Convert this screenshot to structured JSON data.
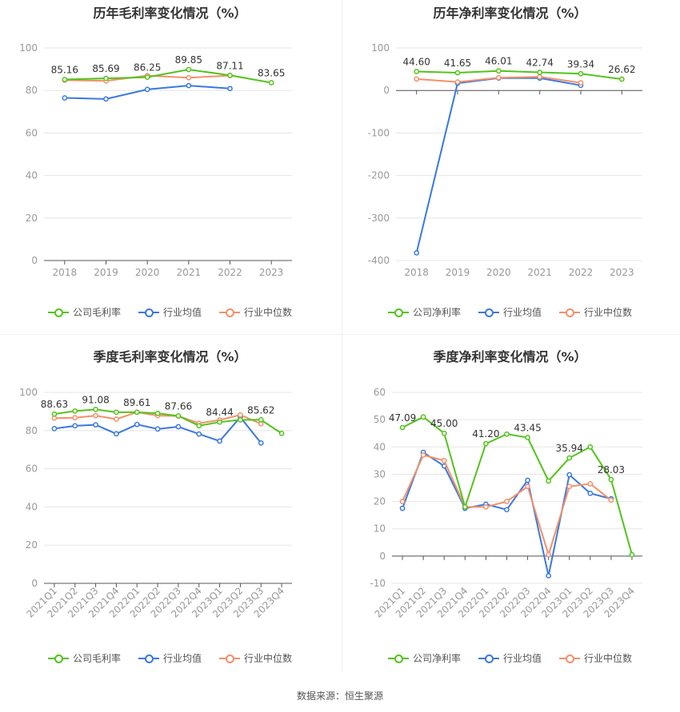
{
  "colors": {
    "company": "#52c41a",
    "avg": "#3a78e0",
    "median": "#f4906a",
    "grid": "#e6e6e6",
    "axis": "#555555",
    "tick": "#999999"
  },
  "legend": {
    "gross": "公司毛利率",
    "net": "公司净利率",
    "avg": "行业均值",
    "median": "行业中位数"
  },
  "source": "数据来源：恒生聚源",
  "chart_data": [
    {
      "title": "历年毛利率变化情况（%）",
      "type": "line",
      "x": [
        "2018",
        "2019",
        "2020",
        "2021",
        "2022",
        "2023"
      ],
      "ylim": [
        0,
        100
      ],
      "yticks": [
        0,
        20,
        40,
        60,
        80,
        100
      ],
      "series": [
        {
          "name": "公司毛利率",
          "values": [
            85.16,
            85.69,
            86.25,
            89.85,
            87.11,
            83.65
          ]
        },
        {
          "name": "行业均值",
          "values": [
            76.5,
            76.0,
            80.5,
            82.3,
            80.9,
            null
          ]
        },
        {
          "name": "行业中位数",
          "values": [
            84.8,
            84.5,
            87.0,
            86.0,
            87.0,
            null
          ]
        }
      ],
      "labels": [
        "85.16",
        "85.69",
        "86.25",
        "89.85",
        "87.11",
        "83.65"
      ]
    },
    {
      "title": "历年净利率变化情况（%）",
      "type": "line",
      "x": [
        "2018",
        "2019",
        "2020",
        "2021",
        "2022",
        "2023"
      ],
      "ylim": [
        -400,
        100
      ],
      "yticks": [
        -400,
        -300,
        -200,
        -100,
        0,
        100
      ],
      "series": [
        {
          "name": "公司净利率",
          "values": [
            44.6,
            41.65,
            46.01,
            42.74,
            39.34,
            26.62
          ]
        },
        {
          "name": "行业均值",
          "values": [
            -382.0,
            17.0,
            29.0,
            29.0,
            12.0,
            null
          ]
        },
        {
          "name": "行业中位数",
          "values": [
            27.0,
            20.0,
            30.0,
            32.0,
            18.0,
            null
          ]
        }
      ],
      "labels": [
        "44.60",
        "41.65",
        "46.01",
        "42.74",
        "39.34",
        "26.62"
      ]
    },
    {
      "title": "季度毛利率变化情况（%）",
      "type": "line",
      "x": [
        "2021Q1",
        "2021Q2",
        "2021Q3",
        "2021Q4",
        "2022Q1",
        "2022Q2",
        "2022Q3",
        "2022Q4",
        "2023Q1",
        "2023Q2",
        "2023Q3",
        "2023Q4"
      ],
      "ylim": [
        0,
        100
      ],
      "yticks": [
        0,
        20,
        40,
        60,
        80,
        100
      ],
      "series": [
        {
          "name": "公司毛利率",
          "values": [
            88.63,
            90.2,
            91.08,
            89.6,
            89.61,
            89.0,
            87.66,
            82.5,
            84.44,
            85.6,
            85.62,
            78.5
          ]
        },
        {
          "name": "行业均值",
          "values": [
            81.0,
            82.5,
            83.0,
            78.3,
            83.2,
            80.8,
            82.0,
            78.2,
            74.5,
            87.0,
            73.5,
            null
          ]
        },
        {
          "name": "行业中位数",
          "values": [
            86.5,
            86.7,
            87.8,
            86.0,
            89.6,
            87.8,
            87.6,
            83.8,
            85.5,
            88.2,
            83.5,
            null
          ]
        }
      ],
      "labels": [
        "88.63",
        "",
        "91.08",
        "",
        "89.61",
        "",
        "87.66",
        "",
        "84.44",
        "",
        "85.62",
        ""
      ]
    },
    {
      "title": "季度净利率变化情况（%）",
      "type": "line",
      "x": [
        "2021Q1",
        "2021Q2",
        "2021Q3",
        "2021Q4",
        "2022Q1",
        "2022Q2",
        "2022Q3",
        "2022Q4",
        "2023Q1",
        "2023Q2",
        "2023Q3",
        "2023Q4"
      ],
      "ylim": [
        -10,
        60
      ],
      "yticks": [
        -10,
        0,
        10,
        20,
        30,
        40,
        50,
        60
      ],
      "series": [
        {
          "name": "公司净利率",
          "values": [
            47.09,
            51.0,
            45.0,
            18.0,
            41.2,
            44.7,
            43.45,
            27.5,
            35.94,
            40.0,
            28.03,
            0.5
          ]
        },
        {
          "name": "行业均值",
          "values": [
            17.5,
            38.0,
            33.0,
            17.5,
            19.0,
            17.0,
            27.8,
            -7.2,
            29.8,
            23.0,
            21.0,
            null
          ]
        },
        {
          "name": "行业中位数",
          "values": [
            20.0,
            37.0,
            35.0,
            18.0,
            18.0,
            20.0,
            25.5,
            0.5,
            25.5,
            26.5,
            20.5,
            null
          ]
        }
      ],
      "labels": [
        "47.09",
        "",
        "45.00",
        "",
        "41.20",
        "",
        "43.45",
        "",
        "35.94",
        "",
        "28.03",
        ""
      ]
    }
  ]
}
